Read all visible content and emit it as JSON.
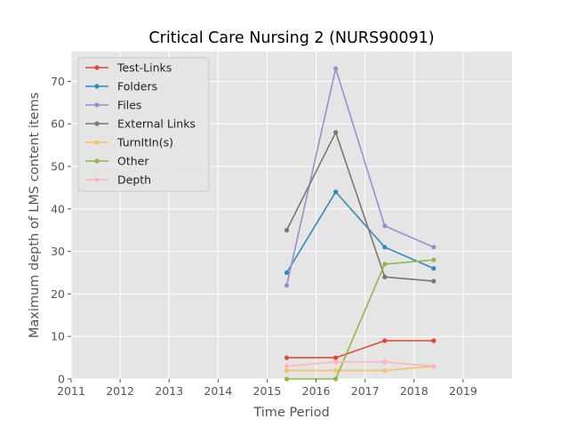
{
  "chart_data": {
    "type": "line",
    "title": "Critical Care Nursing 2 (NURS90091)",
    "xlabel": "Time Period",
    "ylabel": "Maximum depth of LMS content items",
    "xlim": [
      2011,
      2020
    ],
    "ylim": [
      0,
      77
    ],
    "x_ticks": [
      "2011",
      "2012",
      "2013",
      "2014",
      "2015",
      "2016",
      "2017",
      "2018",
      "2019"
    ],
    "y_ticks": [
      "0",
      "10",
      "20",
      "30",
      "40",
      "50",
      "60",
      "70"
    ],
    "x": [
      2015.4,
      2016.4,
      2017.4,
      2018.4
    ],
    "grid": true,
    "legend_position": "top-left",
    "series": [
      {
        "name": "Test-Links",
        "color": "#E24A33",
        "values": [
          5,
          5,
          9,
          9
        ]
      },
      {
        "name": "Folders",
        "color": "#348ABD",
        "values": [
          25,
          44,
          31,
          26
        ]
      },
      {
        "name": "Files",
        "color": "#988ED5",
        "values": [
          22,
          73,
          36,
          31
        ]
      },
      {
        "name": "External Links",
        "color": "#777777",
        "values": [
          35,
          58,
          24,
          23
        ]
      },
      {
        "name": "TurnItIn(s)",
        "color": "#FBC15E",
        "values": [
          2,
          2,
          2,
          3
        ]
      },
      {
        "name": "Other",
        "color": "#8EBA42",
        "values": [
          0,
          0,
          27,
          28
        ]
      },
      {
        "name": "Depth",
        "color": "#FFB5B8",
        "values": [
          3,
          4,
          4,
          3
        ]
      }
    ]
  }
}
